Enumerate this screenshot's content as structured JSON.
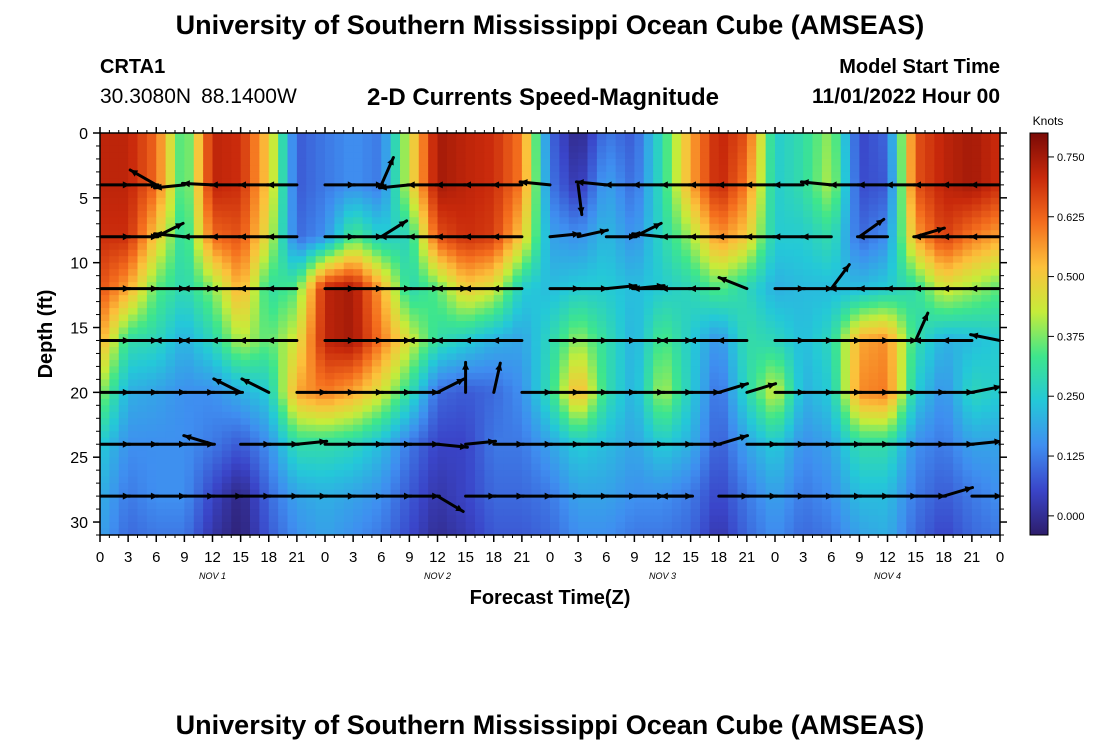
{
  "header": {
    "title": "University of Southern Mississippi Ocean Cube (AMSEAS)",
    "station": "CRTA1",
    "latitude": "30.3080N",
    "longitude": "88.1400W",
    "subtitle": "2-D Currents Speed-Magnitude",
    "start_label": "Model Start Time",
    "start_value": "11/01/2022 Hour 00"
  },
  "footer": {
    "title": "University of Southern Mississippi Ocean Cube (AMSEAS)"
  },
  "chart_data": {
    "type": "heatmap",
    "xlabel": "Forecast Time(Z)",
    "ylabel": "Depth (ft)",
    "x_ticks": [
      "0",
      "3",
      "6",
      "9",
      "12",
      "15",
      "18",
      "21",
      "0",
      "3",
      "6",
      "9",
      "12",
      "15",
      "18",
      "21",
      "0",
      "3",
      "6",
      "9",
      "12",
      "15",
      "18",
      "21",
      "0",
      "3",
      "6",
      "9",
      "12",
      "15",
      "18",
      "21",
      "0"
    ],
    "x_range_hours": [
      0,
      96
    ],
    "day_labels": [
      {
        "label": "NOV 1",
        "hour": 12
      },
      {
        "label": "NOV 2",
        "hour": 36
      },
      {
        "label": "NOV 3",
        "hour": 60
      },
      {
        "label": "NOV 4",
        "hour": 84
      }
    ],
    "y_ticks": [
      0,
      5,
      10,
      15,
      20,
      25,
      30
    ],
    "ylim": [
      0,
      31
    ],
    "y_inverted": true,
    "colorbar": {
      "unit": "Knots",
      "ticks": [
        "0.750",
        "0.625",
        "0.500",
        "0.375",
        "0.250",
        "0.125",
        "0.000"
      ],
      "range": [
        -0.04,
        0.8
      ],
      "colors": [
        "#2d1d6b",
        "#3a45c9",
        "#3f8ef0",
        "#24c8d8",
        "#3ee68c",
        "#c6ec3a",
        "#fcc13b",
        "#f46d1d",
        "#c8290b",
        "#7a0a06"
      ]
    },
    "speed_grid": {
      "times_hours": [
        0,
        3,
        6,
        9,
        12,
        15,
        18,
        21,
        24,
        27,
        30,
        33,
        36,
        39,
        42,
        45,
        48,
        51,
        54,
        57,
        60,
        63,
        66,
        69,
        72,
        75,
        78,
        81,
        84,
        87,
        90,
        93,
        96
      ],
      "depths_ft": [
        0,
        4,
        8,
        12,
        16,
        20,
        24,
        28,
        31
      ],
      "values": [
        [
          0.72,
          0.72,
          0.62,
          0.3,
          0.72,
          0.7,
          0.5,
          0.08,
          0.12,
          0.15,
          0.12,
          0.45,
          0.75,
          0.72,
          0.7,
          0.6,
          0.1,
          -0.02,
          0.12,
          0.08,
          0.3,
          0.55,
          0.72,
          0.65,
          0.25,
          0.3,
          0.4,
          0.05,
          0.1,
          0.65,
          0.72,
          0.75,
          0.7
        ],
        [
          0.72,
          0.72,
          0.62,
          0.3,
          0.72,
          0.7,
          0.5,
          0.08,
          0.12,
          0.15,
          0.12,
          0.45,
          0.75,
          0.72,
          0.7,
          0.6,
          0.12,
          0.02,
          0.18,
          0.1,
          0.3,
          0.55,
          0.72,
          0.6,
          0.25,
          0.3,
          0.42,
          0.06,
          0.08,
          0.65,
          0.72,
          0.75,
          0.7
        ],
        [
          0.7,
          0.7,
          0.5,
          0.28,
          0.62,
          0.65,
          0.45,
          0.1,
          0.15,
          0.35,
          0.25,
          0.28,
          0.65,
          0.7,
          0.68,
          0.5,
          0.18,
          0.15,
          0.22,
          0.15,
          0.28,
          0.4,
          0.58,
          0.5,
          0.25,
          0.25,
          0.3,
          0.1,
          0.15,
          0.55,
          0.68,
          0.6,
          0.55
        ],
        [
          0.65,
          0.55,
          0.35,
          0.28,
          0.38,
          0.55,
          0.3,
          0.35,
          0.72,
          0.75,
          0.55,
          0.28,
          0.35,
          0.5,
          0.45,
          0.25,
          0.22,
          0.25,
          0.25,
          0.22,
          0.25,
          0.28,
          0.35,
          0.28,
          0.2,
          0.22,
          0.22,
          0.22,
          0.25,
          0.3,
          0.45,
          0.4,
          0.35
        ],
        [
          0.55,
          0.3,
          0.28,
          0.2,
          0.28,
          0.42,
          0.35,
          0.45,
          0.72,
          0.75,
          0.6,
          0.45,
          0.3,
          0.25,
          0.2,
          0.18,
          0.28,
          0.4,
          0.3,
          0.2,
          0.35,
          0.25,
          0.15,
          0.3,
          0.28,
          0.22,
          0.28,
          0.55,
          0.58,
          0.3,
          0.2,
          0.22,
          0.25
        ],
        [
          0.4,
          0.2,
          0.18,
          0.15,
          0.15,
          0.2,
          0.25,
          0.55,
          0.6,
          0.55,
          0.45,
          0.3,
          0.1,
          0.08,
          0.1,
          0.15,
          0.3,
          0.55,
          0.3,
          0.2,
          0.42,
          0.25,
          0.1,
          0.28,
          0.45,
          0.2,
          0.25,
          0.58,
          0.6,
          0.25,
          0.15,
          0.28,
          0.25
        ],
        [
          0.25,
          0.15,
          0.15,
          0.15,
          0.12,
          0.08,
          0.15,
          0.3,
          0.3,
          0.28,
          0.22,
          0.12,
          0.05,
          0.05,
          0.12,
          0.12,
          0.18,
          0.25,
          0.22,
          0.18,
          0.25,
          0.2,
          0.08,
          0.18,
          0.25,
          0.15,
          0.18,
          0.3,
          0.3,
          0.15,
          0.12,
          0.18,
          0.18
        ],
        [
          0.2,
          0.12,
          0.15,
          0.15,
          0.05,
          -0.02,
          0.1,
          0.18,
          0.2,
          0.18,
          0.15,
          0.08,
          0.02,
          0.05,
          0.1,
          0.1,
          0.12,
          0.18,
          0.18,
          0.15,
          0.15,
          0.12,
          0.05,
          0.12,
          0.18,
          0.12,
          0.15,
          0.22,
          0.22,
          0.12,
          0.08,
          0.12,
          0.15
        ],
        [
          0.18,
          0.1,
          0.12,
          0.12,
          0.02,
          -0.03,
          0.08,
          0.15,
          0.18,
          0.15,
          0.12,
          0.06,
          0.0,
          0.03,
          0.08,
          0.08,
          0.1,
          0.15,
          0.15,
          0.12,
          0.12,
          0.1,
          0.02,
          0.1,
          0.15,
          0.1,
          0.12,
          0.18,
          0.2,
          0.1,
          0.05,
          0.1,
          0.12
        ]
      ]
    },
    "vector_rows_ft": [
      4,
      8,
      12,
      16,
      20,
      24,
      28
    ],
    "vectors": [
      {
        "depth": 4,
        "hours": [
          0,
          3,
          6,
          9,
          12,
          15,
          18,
          21,
          24,
          27,
          30,
          33,
          36,
          39,
          42,
          45,
          48,
          51,
          54,
          57,
          60,
          63,
          66,
          69,
          72,
          75,
          78,
          81,
          84,
          87,
          90,
          93,
          96
        ],
        "u": [
          1,
          1,
          -0.7,
          -1,
          -1,
          -1,
          -1,
          -1,
          1,
          1,
          0.4,
          -1,
          -1,
          -1,
          -1,
          -1,
          -1,
          0.1,
          -1,
          -1,
          -1,
          -1,
          -1,
          -1,
          -1,
          -1,
          -1,
          -1,
          -1,
          -1,
          -1,
          -1,
          -1
        ],
        "v": [
          0,
          0,
          0.4,
          -0.1,
          0.05,
          0,
          0,
          0,
          0,
          0,
          0.9,
          -0.1,
          0,
          0,
          0,
          0,
          0.1,
          -0.8,
          0.1,
          0,
          0,
          0,
          0,
          0,
          0,
          0,
          0.1,
          0,
          0,
          0,
          0,
          0,
          0
        ]
      },
      {
        "depth": 8,
        "hours": [
          0,
          3,
          6,
          9,
          12,
          15,
          18,
          21,
          24,
          27,
          30,
          33,
          36,
          39,
          42,
          45,
          48,
          51,
          54,
          57,
          60,
          63,
          66,
          69,
          72,
          75,
          78,
          81,
          84,
          87,
          90,
          93,
          96
        ],
        "u": [
          1,
          1,
          0.8,
          -1,
          -1,
          -1,
          -1,
          -1,
          1,
          1,
          0.8,
          -1,
          -1,
          -1,
          -1,
          -1,
          1,
          0.9,
          1,
          0.8,
          -1,
          -1,
          -1,
          -1,
          -1,
          -1,
          -1,
          0.7,
          -1,
          1,
          -1,
          -1,
          -1
        ],
        "v": [
          0,
          0,
          0.4,
          0.1,
          0,
          0,
          0,
          0,
          0,
          0,
          0.5,
          0,
          0,
          0,
          0,
          0,
          0.1,
          0.2,
          0,
          0.4,
          0.1,
          0,
          0,
          0,
          0,
          0,
          0,
          0.5,
          0,
          0.3,
          0,
          0,
          0
        ]
      },
      {
        "depth": 12,
        "hours": [
          0,
          3,
          6,
          9,
          12,
          15,
          18,
          21,
          24,
          27,
          30,
          33,
          36,
          39,
          42,
          45,
          48,
          51,
          54,
          57,
          60,
          63,
          66,
          69,
          72,
          75,
          78,
          81,
          84,
          87,
          90,
          93,
          96
        ],
        "u": [
          1,
          1,
          1,
          1,
          -1,
          -1,
          -1,
          -1,
          1,
          1,
          1,
          1,
          1,
          -1,
          -1,
          -1,
          1,
          1,
          1,
          1,
          -1,
          -1,
          -1,
          -1,
          1,
          1,
          0.6,
          -1,
          -1,
          -1,
          -1,
          -1,
          -1
        ],
        "v": [
          0,
          0,
          0,
          0,
          0,
          0,
          0,
          0,
          0,
          0,
          0,
          0,
          0,
          0,
          0,
          0,
          0,
          0,
          0.1,
          0.1,
          0,
          0,
          0,
          0.4,
          0,
          0,
          0.8,
          0,
          0,
          0,
          0,
          0,
          0
        ]
      },
      {
        "depth": 16,
        "hours": [
          0,
          3,
          6,
          9,
          12,
          15,
          18,
          21,
          24,
          27,
          30,
          33,
          36,
          39,
          42,
          45,
          48,
          51,
          54,
          57,
          60,
          63,
          66,
          69,
          72,
          75,
          78,
          81,
          84,
          87,
          90,
          93,
          96
        ],
        "u": [
          1,
          1,
          1,
          -1,
          -1,
          -1,
          -1,
          -1,
          1,
          1,
          1,
          1,
          -1,
          -1,
          -1,
          -1,
          1,
          1,
          1,
          1,
          1,
          -1,
          -1,
          -1,
          1,
          1,
          1,
          1,
          1,
          0.4,
          -1,
          -1,
          -1
        ],
        "v": [
          0,
          0,
          0,
          0,
          0,
          0,
          0,
          0,
          0,
          0,
          0,
          0,
          0,
          0,
          0,
          0,
          0,
          0,
          0,
          0,
          0,
          0,
          0,
          0,
          0,
          0,
          0,
          0,
          0,
          0.9,
          0,
          0,
          0.2
        ]
      },
      {
        "depth": 20,
        "hours": [
          0,
          3,
          6,
          9,
          12,
          15,
          18,
          21,
          24,
          27,
          30,
          33,
          36,
          39,
          42,
          45,
          48,
          51,
          54,
          57,
          60,
          63,
          66,
          69,
          72,
          75,
          78,
          81,
          84,
          87,
          90,
          93,
          96
        ],
        "u": [
          1,
          1,
          1,
          1,
          1,
          -0.8,
          -1,
          1,
          1,
          1,
          1,
          1,
          1,
          0,
          0.2,
          1,
          1,
          1,
          1,
          1,
          1,
          1,
          1,
          1,
          1,
          1,
          1,
          1,
          1,
          1,
          1,
          1,
          1
        ],
        "v": [
          0,
          0,
          0,
          0,
          0,
          0.4,
          0.5,
          0,
          0,
          0,
          0,
          0,
          0.5,
          1,
          0.9,
          0,
          0,
          0,
          0,
          0,
          0,
          0,
          0.3,
          0.3,
          0,
          0,
          0,
          0,
          0,
          0,
          0,
          0.2,
          0
        ]
      },
      {
        "depth": 24,
        "hours": [
          0,
          3,
          6,
          9,
          12,
          15,
          18,
          21,
          24,
          27,
          30,
          33,
          36,
          39,
          42,
          45,
          48,
          51,
          54,
          57,
          60,
          63,
          66,
          69,
          72,
          75,
          78,
          81,
          84,
          87,
          90,
          93,
          96
        ],
        "u": [
          1,
          1,
          1,
          1,
          -1,
          1,
          1,
          1,
          1,
          1,
          1,
          1,
          1,
          1,
          1,
          1,
          1,
          1,
          1,
          1,
          1,
          1,
          1,
          1,
          1,
          1,
          1,
          1,
          1,
          1,
          1,
          1,
          1
        ],
        "v": [
          0,
          0,
          0,
          0,
          0.3,
          0,
          0,
          0.1,
          0,
          0,
          0,
          0,
          -0.1,
          0.1,
          0,
          0,
          0,
          0,
          0,
          0,
          0,
          0,
          0.3,
          0,
          0,
          0,
          0,
          0,
          0,
          0,
          0,
          0.1,
          0
        ]
      },
      {
        "depth": 28,
        "hours": [
          0,
          3,
          6,
          9,
          12,
          15,
          18,
          21,
          24,
          27,
          30,
          33,
          36,
          39,
          42,
          45,
          48,
          51,
          54,
          57,
          60,
          63,
          66,
          69,
          72,
          75,
          78,
          81,
          84,
          87,
          90,
          93,
          96
        ],
        "u": [
          1,
          1,
          1,
          1,
          1,
          1,
          1,
          1,
          1,
          1,
          1,
          1,
          1,
          0.8,
          1,
          1,
          1,
          1,
          1,
          1,
          1,
          -1,
          1,
          1,
          1,
          1,
          1,
          1,
          1,
          1,
          1,
          1,
          1
        ],
        "v": [
          0,
          0,
          0,
          0,
          0,
          0,
          0,
          0,
          0,
          0,
          0,
          0,
          -0.6,
          0,
          0,
          0,
          0,
          0,
          0,
          0,
          0,
          0,
          0,
          0,
          0,
          0,
          0,
          0,
          0,
          0,
          0.3,
          0,
          0
        ]
      }
    ]
  }
}
